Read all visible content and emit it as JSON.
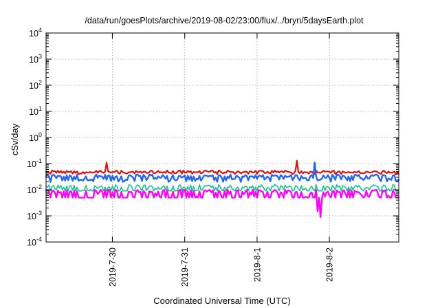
{
  "chart_data": {
    "type": "line",
    "title": "/data/run/goesPlots/archive/2019-08-02/23:00/flux/../bryn/5daysEarth.plot",
    "xlabel": "Coordinated Universal Time (UTC)",
    "ylabel": "cSv/day",
    "yscale": "log",
    "ylim": [
      0.0001,
      10000
    ],
    "xlim": [
      "2019-07-29 02:00",
      "2019-08-02 23:00"
    ],
    "grid": true,
    "yticks": [
      {
        "base": "10",
        "exp": "-4"
      },
      {
        "base": "10",
        "exp": "-3"
      },
      {
        "base": "10",
        "exp": "-2"
      },
      {
        "base": "10",
        "exp": "-1"
      },
      {
        "base": "10",
        "exp": "0"
      },
      {
        "base": "10",
        "exp": "1"
      },
      {
        "base": "10",
        "exp": "2"
      },
      {
        "base": "10",
        "exp": "3"
      },
      {
        "base": "10",
        "exp": "4"
      }
    ],
    "xticks": [
      {
        "label": "2019-7-30",
        "date": "2019-07-30 00:00"
      },
      {
        "label": "2019-7-31",
        "date": "2019-07-31 00:00"
      },
      {
        "label": "2019-8-1",
        "date": "2019-08-01 00:00"
      },
      {
        "label": "2019-8-2",
        "date": "2019-08-02 00:00"
      }
    ],
    "series": [
      {
        "color": "#dd1111",
        "width": 2.2,
        "base": 0.05,
        "amp": 0.16,
        "floor": 0.04,
        "noise": 0.1,
        "min": 0.025,
        "spikes": [
          {
            "x": "2019-07-29 22:00",
            "y": 0.11
          },
          {
            "x": "2019-08-01 13:00",
            "y": 0.13
          }
        ]
      },
      {
        "color": "#18c090",
        "width": 1.6,
        "base": 0.014,
        "amp": 0.5,
        "floor": 0.011,
        "noise": 0.12,
        "min": 0.009,
        "spikes": []
      },
      {
        "color": "#ff00ff",
        "width": 2.4,
        "base": 0.009,
        "amp": 0.75,
        "floor": 0.006,
        "noise": 0.12,
        "min": 0.005,
        "spikes": [
          {
            "x": "2019-08-01 21:00",
            "y": 0.0009
          },
          {
            "x": "2019-08-01 20:00",
            "y": 0.0015
          }
        ]
      },
      {
        "color": "#2266ee",
        "width": 2.4,
        "base": 0.035,
        "amp": 0.42,
        "floor": 0.03,
        "noise": 0.1,
        "min": 0.018,
        "spikes": [
          {
            "x": "2019-08-01 19:00",
            "y": 0.11
          }
        ]
      }
    ]
  }
}
